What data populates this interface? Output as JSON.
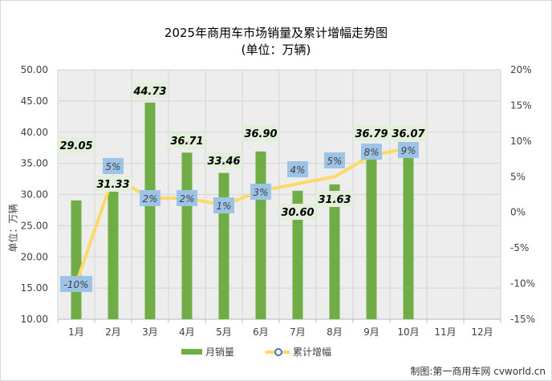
{
  "title": "2025年商用车市场销量及累计增幅走势图",
  "subtitle": "(单位：万辆)",
  "credit": "制图:第一商用车网 cvworld.cn",
  "colors": {
    "bar": "#70AD47",
    "line": "#FFD966",
    "marker_border": "#4472C4",
    "bar_label_bg": "#E2EFDA",
    "line_label_bg": "#9DC3E6",
    "plot_bg": "#EDEDED",
    "grid": "#D9D9D9"
  },
  "legend": {
    "bar_label": "月销量",
    "line_label": "累计增幅"
  },
  "chart_data": {
    "type": "bar+line",
    "title": "2025年商用车市场销量及累计增幅走势图",
    "subtitle": "(单位：万辆)",
    "xlabel": "",
    "ylabel": "单位：万辆",
    "y2label": "",
    "categories": [
      "1月",
      "2月",
      "3月",
      "4月",
      "5月",
      "6月",
      "7月",
      "8月",
      "9月",
      "10月",
      "11月",
      "12月"
    ],
    "series": [
      {
        "name": "月销量",
        "type": "bar",
        "axis": "left",
        "values": [
          29.05,
          31.33,
          44.73,
          36.71,
          33.46,
          36.9,
          30.6,
          31.63,
          36.79,
          36.07,
          null,
          null
        ],
        "labels": [
          "29.05",
          "31.33",
          "44.73",
          "36.71",
          "33.46",
          "36.90",
          "30.60",
          "31.63",
          "36.79",
          "36.07",
          "",
          ""
        ]
      },
      {
        "name": "累计增幅",
        "type": "line",
        "axis": "right",
        "values": [
          -10,
          5,
          2,
          2,
          1,
          3,
          4,
          5,
          8,
          9,
          null,
          null
        ],
        "labels": [
          "-10%",
          "5%",
          "2%",
          "2%",
          "1%",
          "3%",
          "4%",
          "5%",
          "8%",
          "9%",
          "",
          ""
        ]
      }
    ],
    "ylim": [
      10,
      50
    ],
    "y_ticks": [
      "50.00",
      "45.00",
      "40.00",
      "35.00",
      "30.00",
      "25.00",
      "20.00",
      "15.00",
      "10.00"
    ],
    "y2lim": [
      -15,
      20
    ],
    "y2_ticks": [
      "20%",
      "15%",
      "10%",
      "5%",
      "0%",
      "-5%",
      "-10%",
      "-15%"
    ],
    "grid": true,
    "legend_position": "bottom"
  }
}
